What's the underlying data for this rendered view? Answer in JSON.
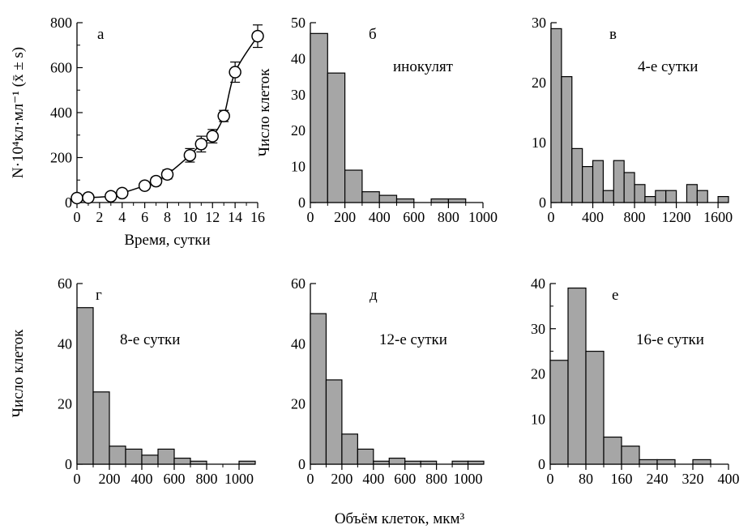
{
  "figure": {
    "shared_xlabel": "Объём клеток, мкм³",
    "shared_ylabel": "Число клеток"
  },
  "chart_data": [
    {
      "type": "line",
      "panel_letter": "а",
      "xlabel": "Время, сутки",
      "ylabel": "N·10⁴кл·мл⁻¹ (x̄ ± s)",
      "xlim": [
        0,
        16
      ],
      "ylim": [
        0,
        800
      ],
      "xticks": [
        0,
        2,
        4,
        6,
        8,
        10,
        12,
        14,
        16
      ],
      "yticks": [
        0,
        200,
        400,
        600,
        800
      ],
      "x": [
        0,
        1,
        3,
        4,
        6,
        7,
        8,
        10,
        11,
        12,
        13,
        14,
        16
      ],
      "y": [
        20,
        22,
        28,
        42,
        75,
        95,
        125,
        210,
        260,
        295,
        385,
        580,
        740
      ],
      "error": [
        10,
        10,
        10,
        12,
        15,
        18,
        20,
        30,
        35,
        30,
        25,
        45,
        50
      ],
      "marker": "circle"
    },
    {
      "type": "bar",
      "panel_letter": "б",
      "annotation": "инокулят",
      "ylabel": "Число клеток",
      "bin_width": 100,
      "bin_start": 0,
      "values": [
        47,
        36,
        9,
        3,
        2,
        1,
        0,
        1,
        1
      ],
      "xlim": [
        0,
        1000
      ],
      "ylim": [
        0,
        50
      ],
      "xticks": [
        0,
        200,
        400,
        600,
        800,
        1000
      ],
      "yticks": [
        0,
        10,
        20,
        30,
        40,
        50
      ]
    },
    {
      "type": "bar",
      "panel_letter": "в",
      "annotation": "4-е сутки",
      "bin_width": 100,
      "bin_start": 0,
      "values": [
        29,
        21,
        9,
        6,
        7,
        2,
        7,
        5,
        3,
        1,
        2,
        2,
        0,
        3,
        2,
        0,
        1
      ],
      "xlim": [
        0,
        1700
      ],
      "ylim": [
        0,
        30
      ],
      "xticks": [
        0,
        400,
        800,
        1200,
        1600
      ],
      "yticks": [
        0,
        10,
        20,
        30
      ]
    },
    {
      "type": "bar",
      "panel_letter": "г",
      "annotation": "8-е сутки",
      "ylabel": "Число клеток",
      "bin_width": 100,
      "bin_start": 0,
      "values": [
        52,
        24,
        6,
        5,
        3,
        5,
        2,
        1,
        0,
        0,
        1
      ],
      "xlim": [
        0,
        1100
      ],
      "ylim": [
        0,
        60
      ],
      "xticks": [
        0,
        200,
        400,
        600,
        800,
        1000
      ],
      "yticks": [
        0,
        20,
        40,
        60
      ]
    },
    {
      "type": "bar",
      "panel_letter": "д",
      "annotation": "12-е сутки",
      "bin_width": 100,
      "bin_start": 0,
      "values": [
        50,
        28,
        10,
        5,
        1,
        2,
        1,
        1,
        0,
        1,
        1
      ],
      "xlim": [
        0,
        1100
      ],
      "ylim": [
        0,
        60
      ],
      "xticks": [
        0,
        200,
        400,
        600,
        800,
        1000
      ],
      "yticks": [
        0,
        20,
        40,
        60
      ]
    },
    {
      "type": "bar",
      "panel_letter": "е",
      "annotation": "16-е сутки",
      "bin_width": 40,
      "bin_start": 0,
      "values": [
        23,
        39,
        25,
        6,
        4,
        1,
        1,
        0,
        1
      ],
      "xlim": [
        0,
        400
      ],
      "ylim": [
        0,
        40
      ],
      "xticks": [
        0,
        80,
        160,
        240,
        320,
        400
      ],
      "yticks": [
        0,
        10,
        20,
        30,
        40
      ]
    }
  ]
}
